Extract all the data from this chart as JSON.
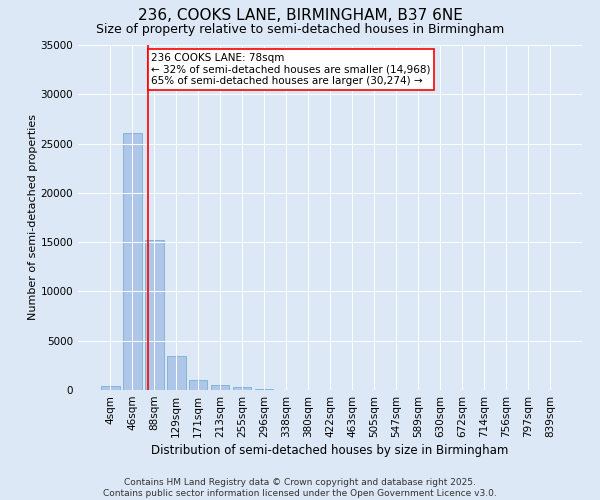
{
  "title": "236, COOKS LANE, BIRMINGHAM, B37 6NE",
  "subtitle": "Size of property relative to semi-detached houses in Birmingham",
  "xlabel": "Distribution of semi-detached houses by size in Birmingham",
  "ylabel": "Number of semi-detached properties",
  "categories": [
    "4sqm",
    "46sqm",
    "88sqm",
    "129sqm",
    "171sqm",
    "213sqm",
    "255sqm",
    "296sqm",
    "338sqm",
    "380sqm",
    "422sqm",
    "463sqm",
    "505sqm",
    "547sqm",
    "589sqm",
    "630sqm",
    "672sqm",
    "714sqm",
    "756sqm",
    "797sqm",
    "839sqm"
  ],
  "values": [
    400,
    26100,
    15200,
    3400,
    1000,
    500,
    300,
    100,
    0,
    0,
    0,
    0,
    0,
    0,
    0,
    0,
    0,
    0,
    0,
    0,
    0
  ],
  "bar_color": "#aec6e8",
  "bar_edge_color": "#7aafd4",
  "background_color": "#dce8f5",
  "vline_x": 1.72,
  "vline_color": "red",
  "annotation_text": "236 COOKS LANE: 78sqm\n← 32% of semi-detached houses are smaller (14,968)\n65% of semi-detached houses are larger (30,274) →",
  "annotation_box_color": "white",
  "annotation_box_edge": "red",
  "ylim": [
    0,
    35000
  ],
  "yticks": [
    0,
    5000,
    10000,
    15000,
    20000,
    25000,
    30000,
    35000
  ],
  "ytick_labels": [
    "0",
    "5000",
    "10000",
    "15000",
    "20000",
    "25000",
    "30000",
    "35000"
  ],
  "footer": "Contains HM Land Registry data © Crown copyright and database right 2025.\nContains public sector information licensed under the Open Government Licence v3.0.",
  "title_fontsize": 11,
  "subtitle_fontsize": 9,
  "xlabel_fontsize": 8.5,
  "ylabel_fontsize": 8,
  "tick_fontsize": 7.5,
  "footer_fontsize": 6.5,
  "annot_fontsize": 7.5
}
